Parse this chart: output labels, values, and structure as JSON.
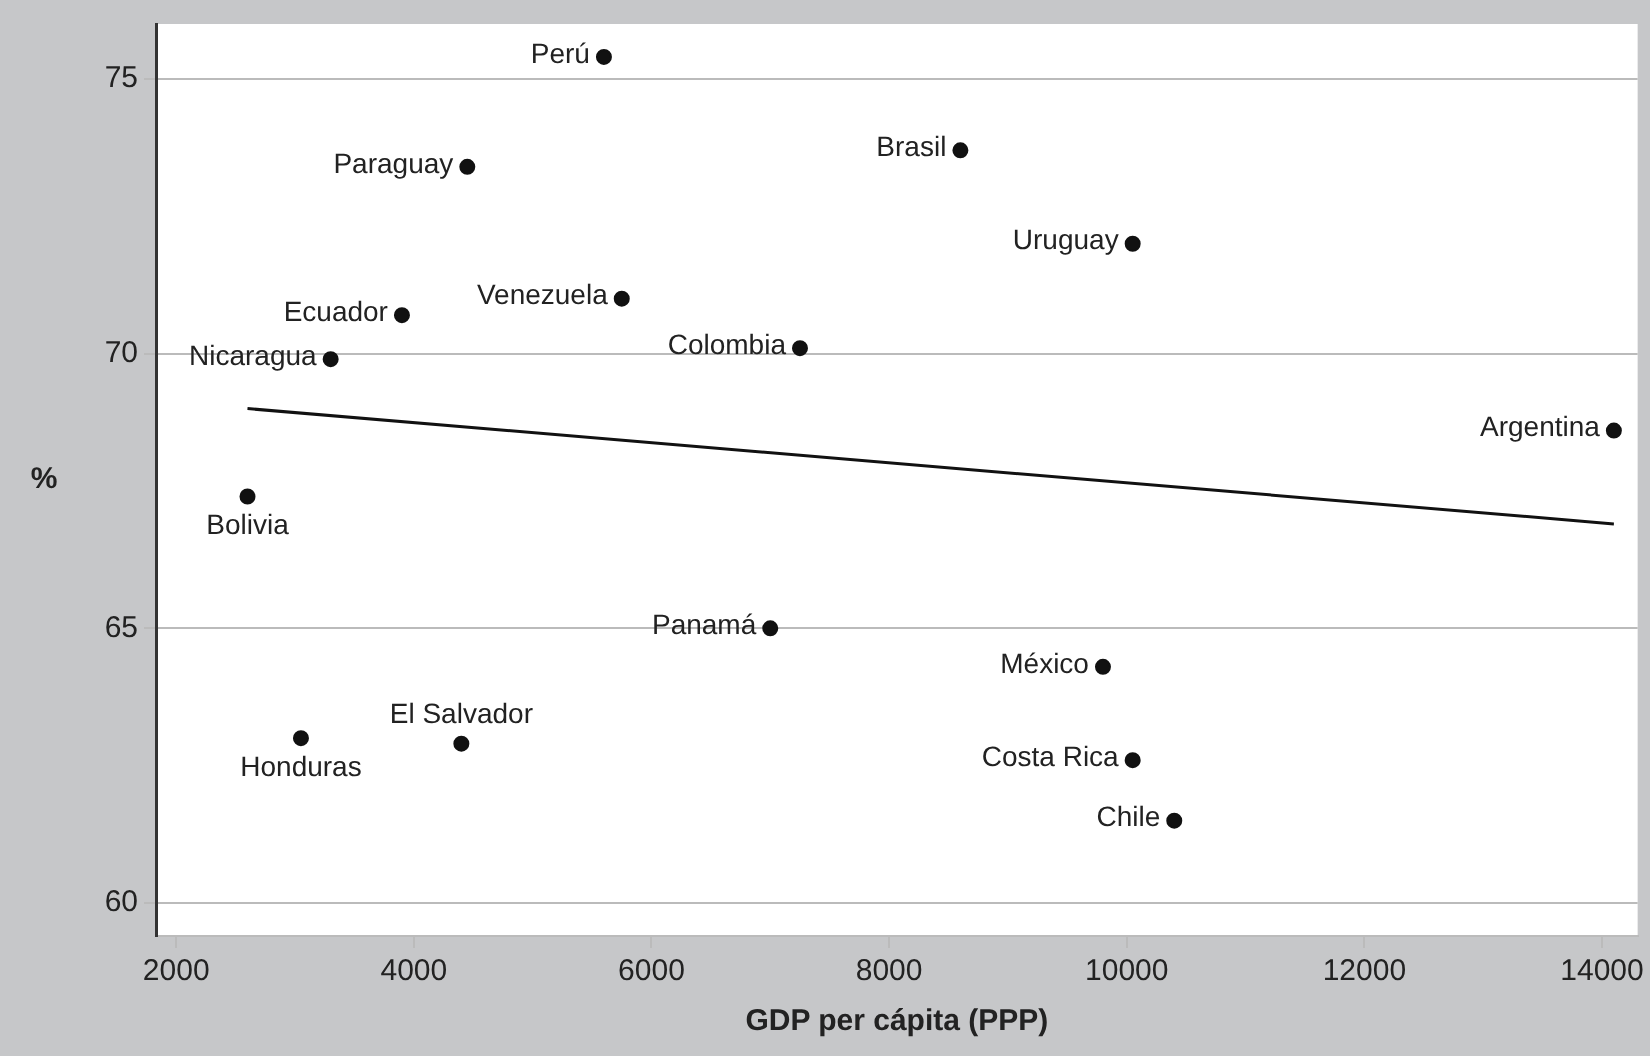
{
  "chart_data": {
    "type": "scatter",
    "xlabel": "GDP per cápita (PPP)",
    "ylabel": "%",
    "xlim": [
      1830,
      14300
    ],
    "xticks": [
      2000,
      4000,
      6000,
      8000,
      10000,
      12000,
      14000
    ],
    "ylim": [
      59.4,
      76
    ],
    "yticks": [
      60,
      65,
      70,
      75
    ],
    "grid": "y",
    "legend": false,
    "marker": "circle",
    "x": [
      5600,
      4450,
      3900,
      5750,
      3300,
      7250,
      2600,
      7000,
      3050,
      4400,
      8600,
      10050,
      14100,
      9800,
      10050,
      10400
    ],
    "series": [
      {
        "color": "#111111",
        "values": [
          75.4,
          73.4,
          70.7,
          71.0,
          69.9,
          70.1,
          67.4,
          65.0,
          63.0,
          62.9,
          73.7,
          72.0,
          68.6,
          64.3,
          62.6,
          61.5
        ]
      },
      {
        "type": "line",
        "color": "#111111",
        "x": [
          2600,
          14100
        ],
        "values": [
          69.0,
          66.9
        ],
        "marker": "none",
        "line_style": "solid"
      }
    ],
    "annotations": [
      {
        "text": "Perú",
        "x": 5600,
        "y": 75.4
      },
      {
        "text": "Paraguay",
        "x": 4450,
        "y": 73.4
      },
      {
        "text": "Ecuador",
        "x": 3900,
        "y": 70.7
      },
      {
        "text": "Venezuela",
        "x": 5750,
        "y": 71.0
      },
      {
        "text": "Nicaragua",
        "x": 3300,
        "y": 69.9
      },
      {
        "text": "Colombia",
        "x": 7250,
        "y": 70.1
      },
      {
        "text": "Bolivia",
        "x": 2600,
        "y": 67.4
      },
      {
        "text": "Panamá",
        "x": 7000,
        "y": 65.0
      },
      {
        "text": "Honduras",
        "x": 3050,
        "y": 63.0
      },
      {
        "text": "El Salvador",
        "x": 4400,
        "y": 62.9
      },
      {
        "text": "Brasil",
        "x": 8600,
        "y": 73.7
      },
      {
        "text": "Uruguay",
        "x": 10050,
        "y": 72.0
      },
      {
        "text": "Argentina",
        "x": 14100,
        "y": 68.6
      },
      {
        "text": "México",
        "x": 9800,
        "y": 64.3
      },
      {
        "text": "Costa Rica",
        "x": 10050,
        "y": 62.6
      },
      {
        "text": "Chile",
        "x": 10400,
        "y": 61.5
      }
    ]
  }
}
